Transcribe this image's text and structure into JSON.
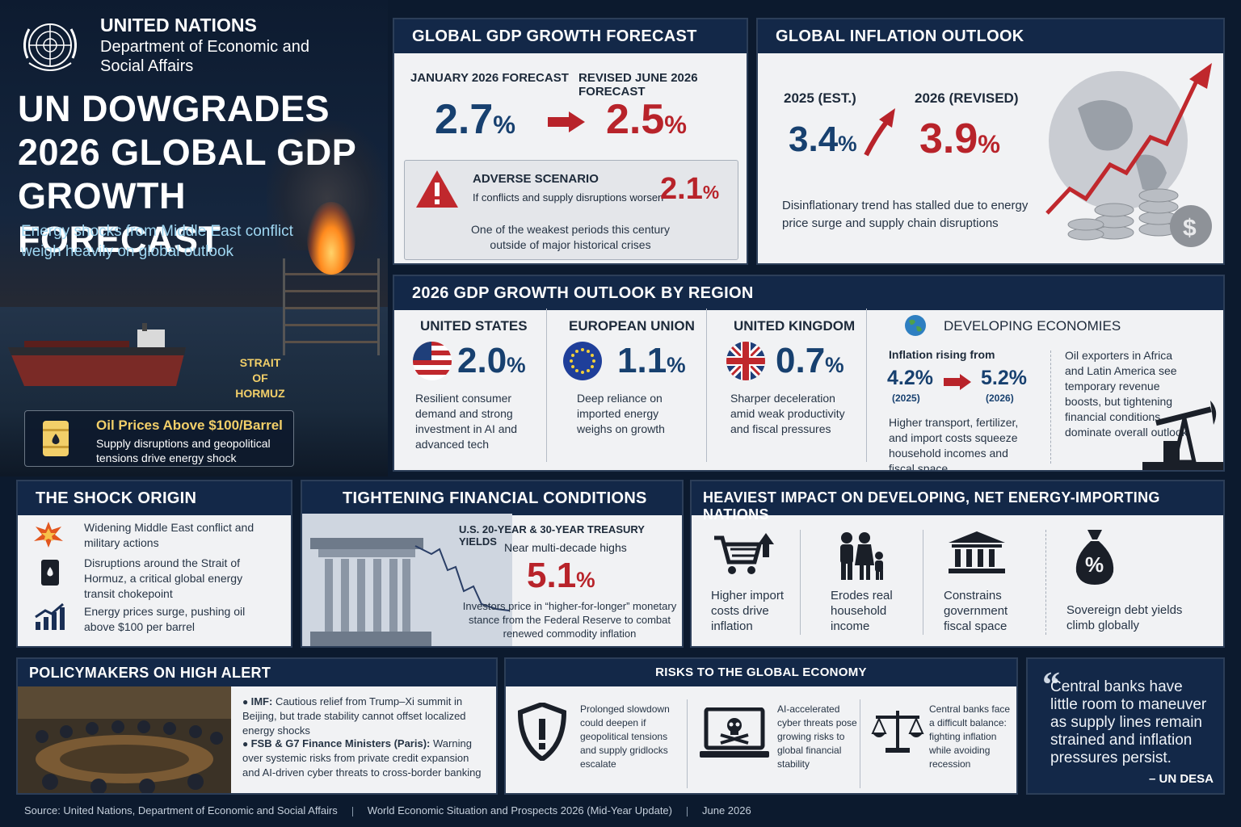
{
  "header": {
    "org_name": "UNITED NATIONS",
    "department": "Department of Economic and Social Affairs",
    "headline": "UN DOWGRADES 2026 GLOBAL GDP GROWTH FORECAST",
    "subheadline": "Energy shocks from Middle East conflict weigh heavily on global outlook",
    "map_label": "STRAIT OF HORMUZ",
    "oil_title": "Oil Prices Above $100/Barrel",
    "oil_text": "Supply disruptions and geopolitical tensions drive energy shock"
  },
  "gdp_forecast": {
    "title": "GLOBAL GDP GROWTH FORECAST",
    "jan_label": "JANUARY 2026 FORECAST",
    "jan_value": "2.7",
    "revised_label": "REVISED JUNE 2026 FORECAST",
    "revised_value": "2.5",
    "pct": "%",
    "adverse_title": "ADVERSE SCENARIO",
    "adverse_text": "If conflicts and supply disruptions worsen",
    "adverse_value": "2.1",
    "adverse_note": "One of the weakest periods this century outside of major historical crises"
  },
  "inflation": {
    "title": "GLOBAL INFLATION OUTLOOK",
    "est_label": "2025 (EST.)",
    "est_value": "3.4",
    "revised_label": "2026 (REVISED)",
    "revised_value": "3.9",
    "note": "Disinflationary trend has stalled due to energy price surge and supply chain disruptions"
  },
  "regions": {
    "title": "2026 GDP GROWTH OUTLOOK BY REGION",
    "us": {
      "name": "UNITED STATES",
      "value": "2.0",
      "text": "Resilient consumer demand and strong investment in AI and advanced tech"
    },
    "eu": {
      "name": "EUROPEAN UNION",
      "value": "1.1",
      "text": "Deep reliance on imported energy weighs on growth"
    },
    "uk": {
      "name": "UNITED KINGDOM",
      "value": "0.7",
      "text": "Sharper deceleration amid weak productivity and fiscal pressures"
    },
    "dev": {
      "name": "DEVELOPING ECONOMIES",
      "infl_label": "Inflation rising from",
      "from_value": "4.2%",
      "from_year": "(2025)",
      "to_value": "5.2%",
      "to_year": "(2026)",
      "text": "Higher transport, fertilizer, and import costs squeeze household incomes and fiscal space",
      "exporters": "Oil exporters in Africa and Latin America see temporary revenue boosts, but tightening financial conditions dominate overall outlook"
    }
  },
  "shock": {
    "title": "THE SHOCK ORIGIN",
    "items": [
      "Widening Middle East conflict and military actions",
      "Disruptions around the Strait of Hormuz, a critical global energy transit chokepoint",
      "Energy prices surge, pushing oil above $100 per barrel"
    ]
  },
  "financial": {
    "title": "TIGHTENING FINANCIAL CONDITIONS",
    "yields_label": "U.S. 20-YEAR & 30-YEAR TREASURY YIELDS",
    "yields_note": "Near multi-decade highs",
    "yields_value": "5.1",
    "text": "Investors price in “higher-for-longer” monetary stance from the Federal Reserve to combat renewed commodity inflation"
  },
  "heavy": {
    "title": "HEAVIEST IMPACT ON DEVELOPING, NET ENERGY-IMPORTING NATIONS",
    "items": [
      "Higher import costs drive inflation",
      "Erodes real household income",
      "Constrains government fiscal space",
      "Sovereign debt yields climb globally"
    ]
  },
  "policy": {
    "title": "POLICYMAKERS ON HIGH ALERT",
    "imf_label": "IMF:",
    "imf_text": "Cautious relief from Trump–Xi summit in Beijing, but trade stability cannot offset localized energy shocks",
    "fsb_label": "FSB & G7 Finance Ministers (Paris):",
    "fsb_text": "Warning over systemic risks from private credit expansion and AI-driven cyber threats to cross-border banking"
  },
  "risks": {
    "title": "RISKS TO THE GLOBAL ECONOMY",
    "items": [
      "Prolonged slowdown could deepen if geopolitical tensions and supply gridlocks escalate",
      "AI-accelerated cyber threats pose growing risks to global financial stability",
      "Central banks face a difficult balance: fighting inflation while avoiding recession"
    ]
  },
  "quote": {
    "mark": "“",
    "text": "Central banks have little room to maneuver as supply lines remain strained and inflation pressures persist.",
    "author": "– UN DESA"
  },
  "footer": {
    "source": "Source: United Nations, Department of Economic and Social Affairs",
    "report": "World Economic Situation and Prospects 2026 (Mid-Year Update)",
    "date": "June 2026"
  },
  "colors": {
    "navy": "#132848",
    "blue": "#17406f",
    "red": "#b8232a",
    "gold": "#f2cf69"
  }
}
